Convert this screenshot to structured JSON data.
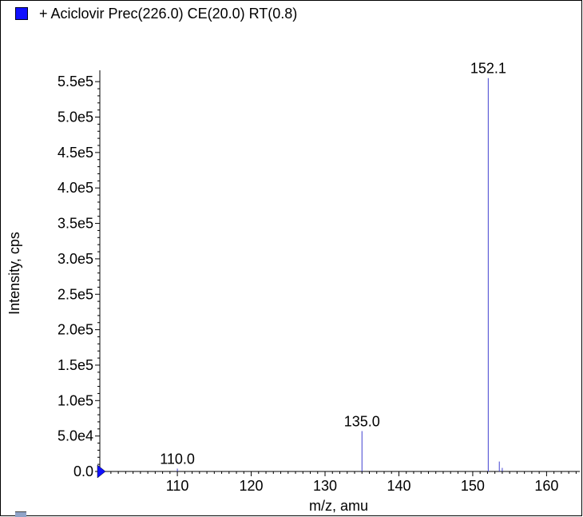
{
  "legend": {
    "text": "+ Aciclovir Prec(226.0) CE(20.0) RT(0.8)",
    "swatch_color": "#1010ff"
  },
  "chart_data": {
    "type": "bar",
    "title": "+ Aciclovir Prec(226.0) CE(20.0) RT(0.8)",
    "xlabel": "m/z, amu",
    "ylabel": "Intensity, cps",
    "xlim": [
      99.5,
      164.5
    ],
    "ylim": [
      0,
      575000
    ],
    "x_ticks": [
      110,
      120,
      130,
      140,
      150,
      160
    ],
    "x_tick_labels": [
      "110",
      "120",
      "130",
      "140",
      "150",
      "160"
    ],
    "y_ticks": [
      0,
      50000,
      100000,
      150000,
      200000,
      250000,
      300000,
      350000,
      400000,
      450000,
      500000,
      550000
    ],
    "y_tick_labels": [
      "0.0",
      "5.0e4",
      "1.0e5",
      "1.5e5",
      "2.0e5",
      "2.5e5",
      "3.0e5",
      "3.5e5",
      "4.0e5",
      "4.5e5",
      "5.0e5",
      "5.5e5"
    ],
    "line_color": "#4040d0",
    "peaks": [
      {
        "mz": 110.0,
        "intensity": 4000,
        "label": "110.0"
      },
      {
        "mz": 135.0,
        "intensity": 57000,
        "label": "135.0"
      },
      {
        "mz": 152.1,
        "intensity": 555000,
        "label": "152.1"
      },
      {
        "mz": 153.6,
        "intensity": 14000,
        "label": ""
      },
      {
        "mz": 154.0,
        "intensity": 5000,
        "label": ""
      }
    ]
  }
}
